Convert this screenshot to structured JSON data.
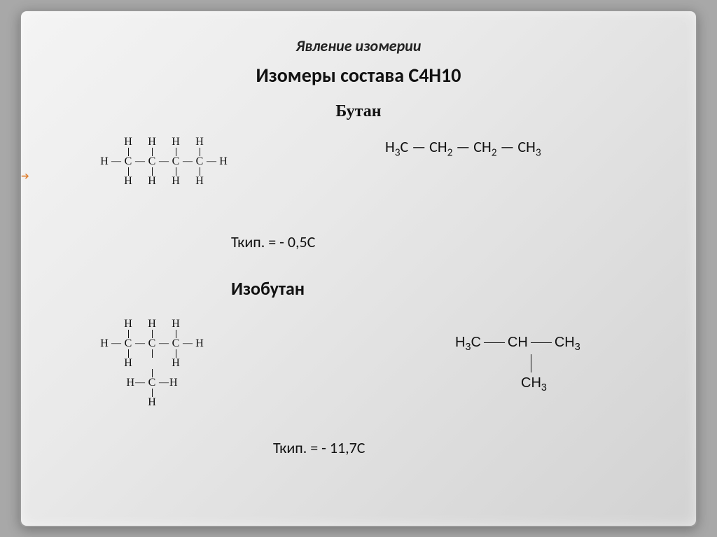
{
  "slide": {
    "title_phenomenon": "Явление изомерии",
    "title_isomers": "Изомеры состава C4H10",
    "title_phenomenon_fontsize": 22,
    "title_isomers_fontsize": 28,
    "background_gradient_from": "#f4f4f4",
    "background_gradient_to": "#d2d2d2",
    "outer_background": "#a8a8a8"
  },
  "butane": {
    "name": "Бутан",
    "name_fontsize": 24,
    "condensed_formula_parts": [
      "H",
      "3",
      "C — CH",
      "2",
      " — CH",
      "2",
      " — CH",
      "3"
    ],
    "boiling_point_label": "Ткип. = - 0,5С",
    "formula_fontsize": 22,
    "bp_fontsize": 22
  },
  "isobutane": {
    "name": "Изобутан",
    "name_fontsize": 26,
    "boiling_point_label": "Ткип. = - 11,7С",
    "condensed_line1_parts": [
      "H",
      "3",
      "C",
      "CH",
      "CH",
      "3"
    ],
    "condensed_branch": "CH",
    "condensed_branch_sub": "3",
    "cond_fontsize": 20,
    "bp_fontsize": 22
  },
  "structural": {
    "atom_font": "Times New Roman",
    "atom_fontsize": 16,
    "bond_color": "#111111"
  },
  "styling": {
    "text_color": "#111111",
    "arrow_color": "#e08030"
  }
}
